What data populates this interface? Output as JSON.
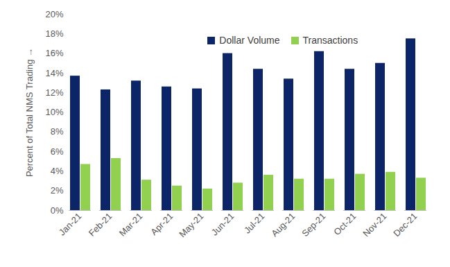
{
  "chart_data": {
    "type": "bar",
    "y_label": "Percent of Total NMS Trading",
    "categories": [
      "Jan-21",
      "Feb-21",
      "Mar-21",
      "Apr-21",
      "May-21",
      "Jun-21",
      "Jul-21",
      "Aug-21",
      "Sep-21",
      "Oct-21",
      "Nov-21",
      "Dec-21"
    ],
    "series": [
      {
        "name": "Dollar Volume",
        "color": "#0c2468",
        "values": [
          13.7,
          12.3,
          13.2,
          12.6,
          12.4,
          16.0,
          14.4,
          13.4,
          16.2,
          14.4,
          15.0,
          17.5
        ]
      },
      {
        "name": "Transactions",
        "color": "#92d050",
        "values": [
          4.7,
          5.3,
          3.1,
          2.5,
          2.2,
          2.8,
          3.6,
          3.2,
          3.2,
          3.7,
          3.9,
          3.3
        ]
      }
    ],
    "ylim": [
      0,
      20
    ],
    "yticks": [
      {
        "value": 0,
        "label": "0%"
      },
      {
        "value": 2,
        "label": "2%"
      },
      {
        "value": 4,
        "label": "4%"
      },
      {
        "value": 6,
        "label": "6%"
      },
      {
        "value": 8,
        "label": "8%"
      },
      {
        "value": 10,
        "label": "10%"
      },
      {
        "value": 12,
        "label": "12%"
      },
      {
        "value": 14,
        "label": "14%"
      },
      {
        "value": 16,
        "label": "16%"
      },
      {
        "value": 18,
        "label": "18%"
      },
      {
        "value": 20,
        "label": "20%"
      }
    ],
    "grid": false,
    "legend": "top",
    "data_labels": false
  }
}
